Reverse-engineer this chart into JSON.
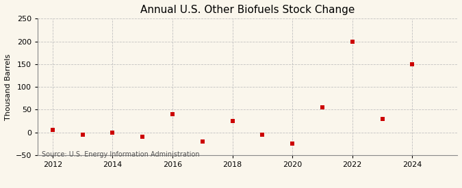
{
  "title": "Annual U.S. Other Biofuels Stock Change",
  "ylabel": "Thousand Barrels",
  "source": "Source: U.S. Energy Information Administration",
  "years": [
    2012,
    2013,
    2014,
    2015,
    2016,
    2017,
    2018,
    2019,
    2020,
    2021,
    2022,
    2023,
    2024
  ],
  "values": [
    5,
    -5,
    0,
    -10,
    40,
    -20,
    25,
    -5,
    -25,
    55,
    200,
    30,
    150
  ],
  "ylim": [
    -50,
    250
  ],
  "yticks": [
    -50,
    0,
    50,
    100,
    150,
    200,
    250
  ],
  "xlim": [
    2011.5,
    2025.5
  ],
  "xticks": [
    2012,
    2014,
    2016,
    2018,
    2020,
    2022,
    2024
  ],
  "marker_color": "#cc0000",
  "marker": "s",
  "marker_size": 4,
  "background_color": "#faf6ec",
  "grid_color": "#bbbbbb",
  "title_fontsize": 11,
  "label_fontsize": 8,
  "tick_fontsize": 8,
  "source_fontsize": 7
}
